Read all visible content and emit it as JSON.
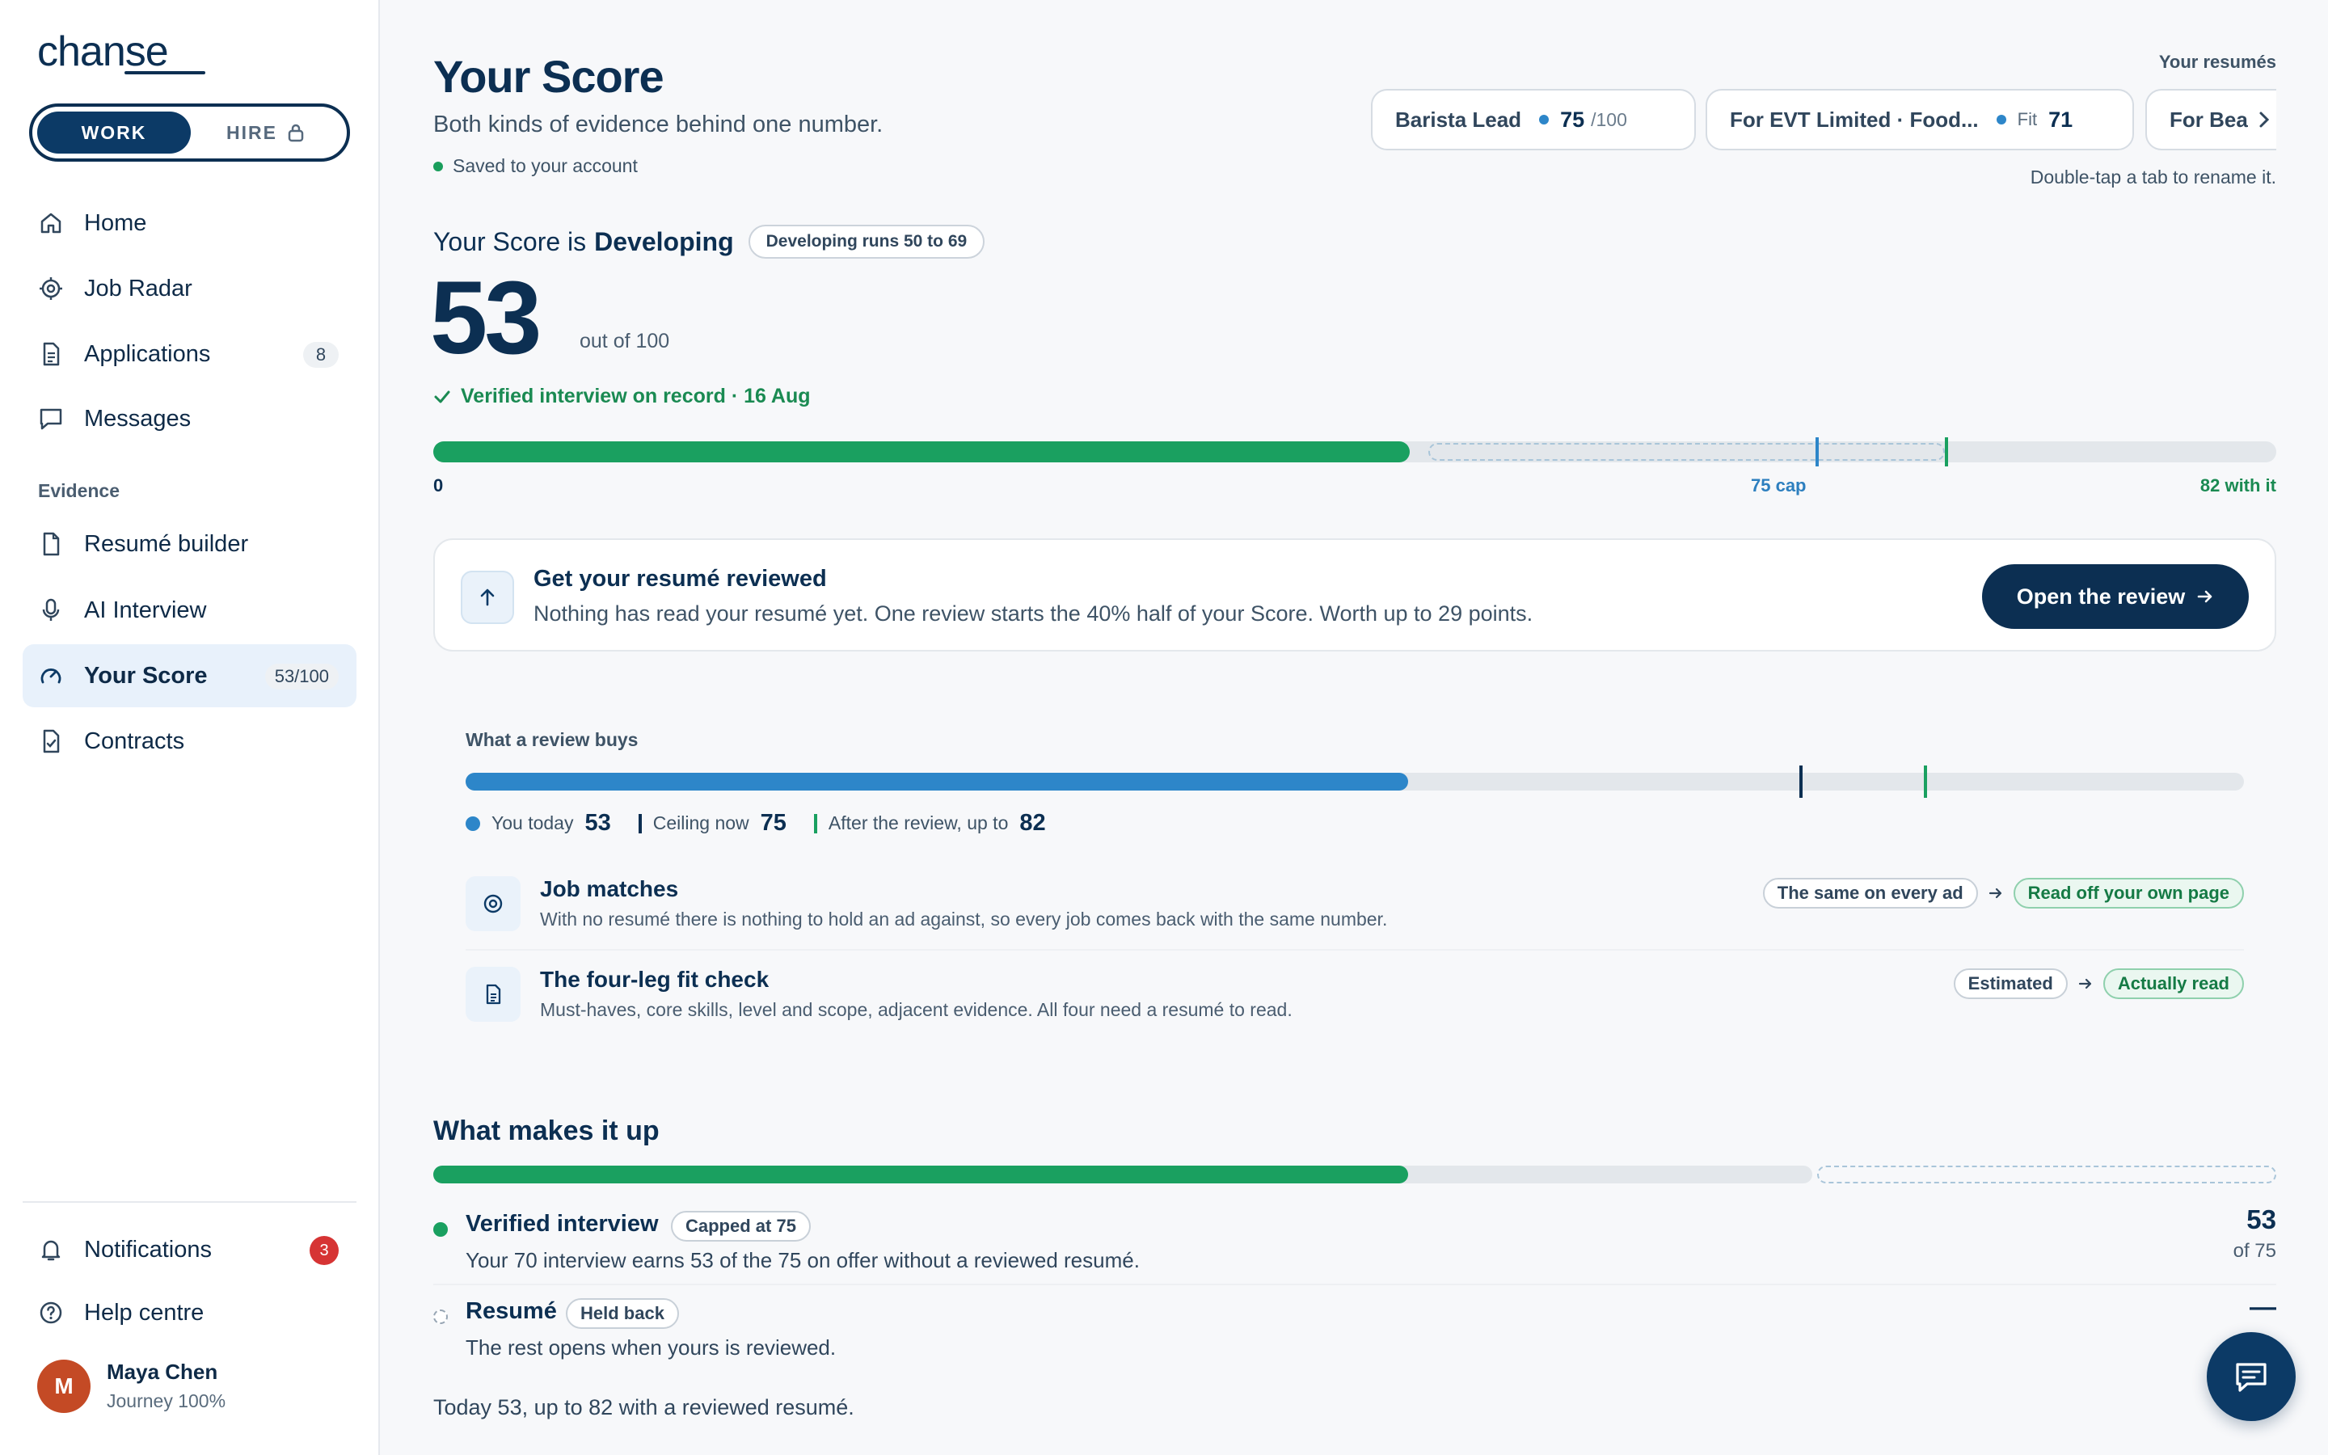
{
  "app": {
    "logo": "chanse",
    "mode_toggle": {
      "work": "WORK",
      "hire": "HIRE",
      "active": "WORK"
    }
  },
  "sidebar": {
    "primary_items": [
      {
        "label": "Home",
        "icon": "home-icon"
      },
      {
        "label": "Job Radar",
        "icon": "radar-icon"
      },
      {
        "label": "Applications",
        "icon": "document-icon",
        "badge": "8"
      },
      {
        "label": "Messages",
        "icon": "message-icon"
      }
    ],
    "section_label": "Evidence",
    "evidence_items": [
      {
        "label": "Resumé builder",
        "icon": "file-icon"
      },
      {
        "label": "AI Interview",
        "icon": "microphone-icon"
      },
      {
        "label": "Your Score",
        "icon": "gauge-icon",
        "badge": "53/100",
        "active": true
      },
      {
        "label": "Contracts",
        "icon": "contract-icon"
      }
    ],
    "footer_items": [
      {
        "label": "Notifications",
        "icon": "bell-icon",
        "badge": "3"
      },
      {
        "label": "Help centre",
        "icon": "help-icon"
      }
    ],
    "user": {
      "initial": "M",
      "name": "Maya Chen",
      "subtitle": "Journey 100%"
    }
  },
  "header": {
    "title": "Your Score",
    "subtitle": "Both kinds of evidence behind one number.",
    "saved_status": "Saved to your account"
  },
  "resumes": {
    "label": "Your resumés",
    "tabs": [
      {
        "name": "Barista Lead",
        "score": "75",
        "suffix": "/100"
      },
      {
        "name": "For EVT Limited · Food...",
        "fit_label": "Fit",
        "score": "71"
      },
      {
        "name": "For Bea"
      }
    ],
    "hint": "Double-tap a tab to rename it."
  },
  "score": {
    "heading_prefix": "Your Score is",
    "level": "Developing",
    "range_chip": "Developing runs 50 to 69",
    "value": "53",
    "out_of": "out of 100",
    "verified": "Verified interview on record · 16 Aug",
    "bar": {
      "current": 53,
      "cap": 75,
      "potential": 82,
      "label_zero": "0",
      "label_cap": "75 cap",
      "label_potential": "82 with it"
    }
  },
  "review_card": {
    "title": "Get your resumé reviewed",
    "text": "Nothing has read your resumé yet. One review starts the 40% half of your Score. Worth up to 29 points.",
    "button": "Open the review"
  },
  "review_buys": {
    "label": "What a review buys",
    "bar": {
      "current": 53,
      "ceiling": 75,
      "after": 82
    },
    "legend": [
      {
        "label": "You today",
        "value": "53"
      },
      {
        "label": "Ceiling now",
        "value": "75"
      },
      {
        "label": "After the review, up to",
        "value": "82"
      }
    ],
    "rows": [
      {
        "title": "Job matches",
        "desc": "With no resumé there is nothing to hold an ad against, so every job comes back with the same number.",
        "from": "The same on every ad",
        "to": "Read off your own page"
      },
      {
        "title": "The four-leg fit check",
        "desc": "Must-haves, core skills, level and scope, adjacent evidence. All four need a resumé to read.",
        "from": "Estimated",
        "to": "Actually read"
      }
    ]
  },
  "makeup": {
    "title": "What makes it up",
    "bar": {
      "filled": 53,
      "interview_max": 75,
      "resume_share": 25
    },
    "components": [
      {
        "title": "Verified interview",
        "chip": "Capped at 75",
        "desc": "Your 70 interview earns 53 of the 75 on offer without a reviewed resumé.",
        "value": "53",
        "of": "of 75"
      },
      {
        "title": "Resumé",
        "chip": "Held back",
        "desc": "The rest opens when yours is reviewed.",
        "value": "—"
      }
    ],
    "summary": "Today 53, up to 82 with a reviewed resumé."
  },
  "colors": {
    "navy": "#0c2f52",
    "green": "#1aa060",
    "blue": "#2d86c9",
    "alert_red": "#d63434"
  }
}
